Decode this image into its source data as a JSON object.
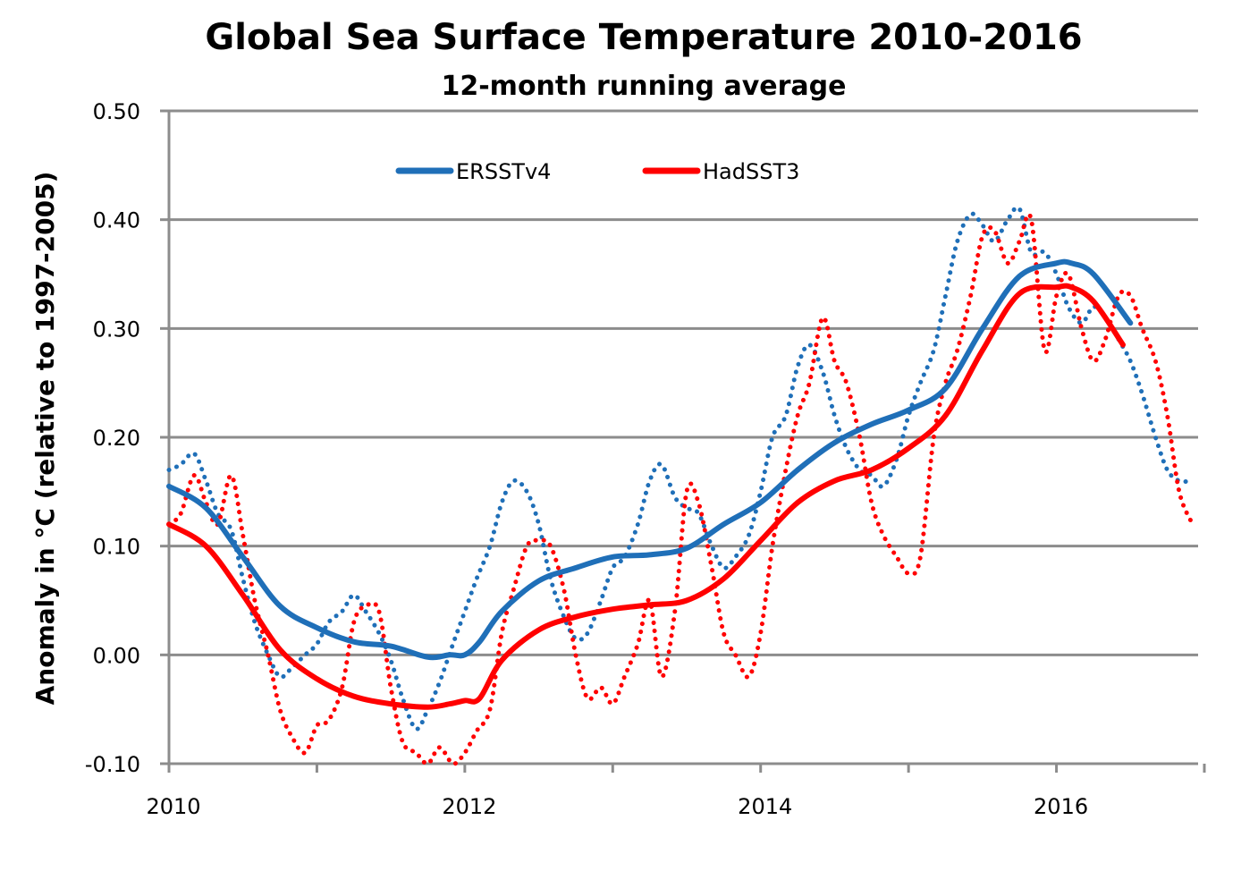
{
  "chart_data": {
    "type": "line",
    "title": "Global Sea Surface Temperature 2010-2016",
    "subtitle": "12-month running average",
    "xlabel": "",
    "ylabel": "Anomaly in °C (relative to 1997-2005)",
    "xlim": [
      2010,
      2017
    ],
    "ylim": [
      -0.1,
      0.5
    ],
    "x_ticks": [
      2010,
      2011,
      2012,
      2013,
      2014,
      2015,
      2016,
      2017
    ],
    "x_tick_labels": [
      "2010",
      "2012",
      "2014",
      "2016"
    ],
    "x_tick_label_values": [
      2010,
      2012,
      2014,
      2016
    ],
    "y_ticks": [
      -0.1,
      0.0,
      0.1,
      0.2,
      0.3,
      0.4,
      0.5
    ],
    "y_tick_labels": [
      "-0.10",
      "0.00",
      "0.10",
      "0.20",
      "0.30",
      "0.40",
      "0.50"
    ],
    "grid": "horizontal",
    "legend": {
      "placement": "top-center",
      "entries": [
        {
          "label": "ERSSTv4",
          "color": "#1f6fb8"
        },
        {
          "label": "HadSST3",
          "color": "#ff0000"
        }
      ]
    },
    "series": [
      {
        "name": "ERSSTv4 12-month running average",
        "style": "solid",
        "color": "#1f6fb8",
        "x": [
          2010.0,
          2010.25,
          2010.5,
          2010.75,
          2011.0,
          2011.25,
          2011.5,
          2011.75,
          2011.9,
          2012.0,
          2012.1,
          2012.25,
          2012.5,
          2012.75,
          2013.0,
          2013.25,
          2013.5,
          2013.75,
          2014.0,
          2014.25,
          2014.5,
          2014.75,
          2015.0,
          2015.25,
          2015.5,
          2015.75,
          2016.0,
          2016.1,
          2016.25,
          2016.5
        ],
        "y": [
          0.155,
          0.135,
          0.09,
          0.045,
          0.025,
          0.012,
          0.008,
          -0.002,
          0.0,
          0.0,
          0.012,
          0.04,
          0.068,
          0.08,
          0.09,
          0.092,
          0.098,
          0.12,
          0.14,
          0.17,
          0.195,
          0.212,
          0.225,
          0.245,
          0.3,
          0.348,
          0.36,
          0.36,
          0.35,
          0.305
        ]
      },
      {
        "name": "HadSST3 12-month running average",
        "style": "solid",
        "color": "#ff0000",
        "x": [
          2010.0,
          2010.25,
          2010.5,
          2010.75,
          2011.0,
          2011.25,
          2011.5,
          2011.75,
          2011.9,
          2012.0,
          2012.1,
          2012.25,
          2012.5,
          2012.75,
          2013.0,
          2013.25,
          2013.5,
          2013.75,
          2014.0,
          2014.25,
          2014.5,
          2014.75,
          2015.0,
          2015.25,
          2015.5,
          2015.75,
          2016.0,
          2016.1,
          2016.25,
          2016.45
        ],
        "y": [
          0.12,
          0.1,
          0.055,
          0.005,
          -0.022,
          -0.038,
          -0.045,
          -0.048,
          -0.045,
          -0.042,
          -0.04,
          -0.005,
          0.023,
          0.035,
          0.042,
          0.046,
          0.05,
          0.07,
          0.105,
          0.14,
          0.16,
          0.17,
          0.19,
          0.22,
          0.28,
          0.332,
          0.338,
          0.338,
          0.325,
          0.285
        ]
      },
      {
        "name": "ERSSTv4 monthly",
        "style": "dotted",
        "color": "#1f6fb8",
        "x": [
          2010.0,
          2010.08,
          2010.17,
          2010.25,
          2010.33,
          2010.42,
          2010.5,
          2010.58,
          2010.67,
          2010.75,
          2010.83,
          2010.92,
          2011.0,
          2011.08,
          2011.17,
          2011.25,
          2011.33,
          2011.42,
          2011.5,
          2011.58,
          2011.67,
          2011.75,
          2011.83,
          2011.92,
          2012.0,
          2012.08,
          2012.17,
          2012.25,
          2012.33,
          2012.42,
          2012.5,
          2012.58,
          2012.67,
          2012.75,
          2012.83,
          2012.92,
          2013.0,
          2013.08,
          2013.17,
          2013.25,
          2013.33,
          2013.42,
          2013.5,
          2013.58,
          2013.67,
          2013.75,
          2013.83,
          2013.92,
          2014.0,
          2014.08,
          2014.17,
          2014.25,
          2014.33,
          2014.42,
          2014.5,
          2014.58,
          2014.67,
          2014.75,
          2014.83,
          2014.92,
          2015.0,
          2015.08,
          2015.17,
          2015.25,
          2015.33,
          2015.42,
          2015.5,
          2015.58,
          2015.67,
          2015.75,
          2015.83,
          2015.92,
          2016.0,
          2016.08,
          2016.17,
          2016.25,
          2016.33,
          2016.42,
          2016.5,
          2016.58,
          2016.67,
          2016.75,
          2016.83,
          2016.92
        ],
        "y": [
          0.17,
          0.175,
          0.185,
          0.16,
          0.13,
          0.115,
          0.07,
          0.03,
          0.0,
          -0.02,
          -0.012,
          0.0,
          0.01,
          0.03,
          0.04,
          0.055,
          0.04,
          0.02,
          -0.005,
          -0.04,
          -0.068,
          -0.05,
          -0.025,
          0.01,
          0.04,
          0.07,
          0.1,
          0.14,
          0.16,
          0.15,
          0.12,
          0.07,
          0.035,
          0.015,
          0.02,
          0.05,
          0.08,
          0.09,
          0.12,
          0.16,
          0.175,
          0.145,
          0.135,
          0.13,
          0.1,
          0.08,
          0.09,
          0.11,
          0.15,
          0.2,
          0.22,
          0.265,
          0.285,
          0.26,
          0.22,
          0.19,
          0.17,
          0.165,
          0.155,
          0.18,
          0.22,
          0.25,
          0.28,
          0.33,
          0.38,
          0.405,
          0.395,
          0.38,
          0.4,
          0.41,
          0.37,
          0.37,
          0.35,
          0.32,
          0.305,
          0.32,
          0.31,
          0.29,
          0.27,
          0.24,
          0.2,
          0.17,
          0.16,
          0.16
        ]
      },
      {
        "name": "HadSST3 monthly",
        "style": "dotted",
        "color": "#ff0000",
        "x": [
          2010.0,
          2010.08,
          2010.17,
          2010.25,
          2010.33,
          2010.42,
          2010.5,
          2010.58,
          2010.67,
          2010.75,
          2010.83,
          2010.92,
          2011.0,
          2011.08,
          2011.17,
          2011.25,
          2011.33,
          2011.42,
          2011.5,
          2011.58,
          2011.67,
          2011.75,
          2011.83,
          2011.92,
          2012.0,
          2012.08,
          2012.17,
          2012.25,
          2012.33,
          2012.42,
          2012.5,
          2012.58,
          2012.67,
          2012.75,
          2012.83,
          2012.92,
          2013.0,
          2013.08,
          2013.17,
          2013.25,
          2013.33,
          2013.42,
          2013.5,
          2013.58,
          2013.67,
          2013.75,
          2013.83,
          2013.92,
          2014.0,
          2014.08,
          2014.17,
          2014.25,
          2014.33,
          2014.42,
          2014.5,
          2014.58,
          2014.67,
          2014.75,
          2014.83,
          2014.92,
          2015.0,
          2015.08,
          2015.17,
          2015.25,
          2015.33,
          2015.42,
          2015.5,
          2015.58,
          2015.67,
          2015.75,
          2015.83,
          2015.92,
          2016.0,
          2016.08,
          2016.17,
          2016.25,
          2016.33,
          2016.42,
          2016.5,
          2016.58,
          2016.67,
          2016.75,
          2016.83,
          2016.92
        ],
        "y": [
          0.12,
          0.13,
          0.165,
          0.14,
          0.12,
          0.165,
          0.11,
          0.05,
          0.0,
          -0.05,
          -0.075,
          -0.09,
          -0.065,
          -0.06,
          -0.03,
          0.03,
          0.045,
          0.04,
          -0.03,
          -0.08,
          -0.09,
          -0.1,
          -0.085,
          -0.1,
          -0.09,
          -0.07,
          -0.05,
          0.02,
          0.06,
          0.1,
          0.105,
          0.1,
          0.06,
          0.0,
          -0.04,
          -0.03,
          -0.045,
          -0.02,
          0.01,
          0.05,
          -0.02,
          0.04,
          0.15,
          0.14,
          0.08,
          0.02,
          0.0,
          -0.02,
          0.02,
          0.1,
          0.17,
          0.22,
          0.25,
          0.31,
          0.27,
          0.25,
          0.2,
          0.14,
          0.11,
          0.09,
          0.075,
          0.09,
          0.2,
          0.25,
          0.28,
          0.33,
          0.385,
          0.39,
          0.36,
          0.38,
          0.4,
          0.28,
          0.33,
          0.35,
          0.3,
          0.27,
          0.29,
          0.33,
          0.33,
          0.3,
          0.27,
          0.22,
          0.15,
          0.12
        ]
      }
    ]
  }
}
